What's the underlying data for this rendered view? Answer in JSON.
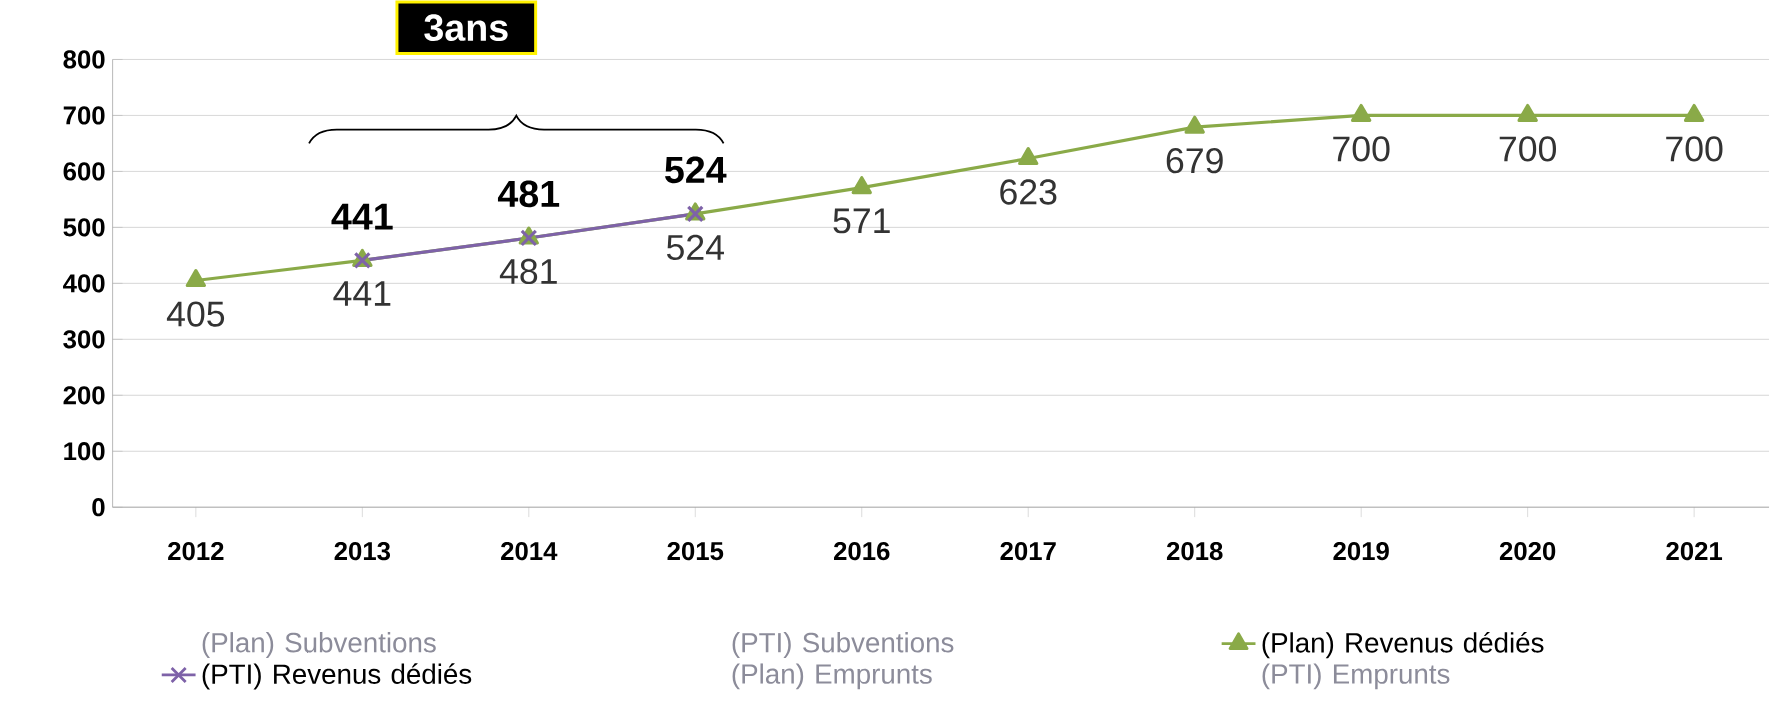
{
  "chart_data": {
    "type": "line",
    "categories": [
      "2012",
      "2013",
      "2014",
      "2015",
      "2016",
      "2017",
      "2018",
      "2019",
      "2020",
      "2021"
    ],
    "series": [
      {
        "name": "(Plan) Revenus dédiés",
        "color": "#8aaa48",
        "marker": "triangle",
        "values": [
          405,
          441,
          481,
          524,
          571,
          623,
          679,
          700,
          700,
          700
        ]
      },
      {
        "name": "(PTI) Revenus dédiés",
        "color": "#7e62a8",
        "marker": "cross",
        "values": [
          null,
          441,
          481,
          524,
          null,
          null,
          null,
          null,
          null,
          null
        ]
      }
    ],
    "ylim": [
      0,
      800
    ],
    "yticks": [
      0,
      100,
      200,
      300,
      400,
      500,
      600,
      700,
      800
    ],
    "grid": "y",
    "legend": "bottom",
    "data_labels": true,
    "annotations": [
      "3ans",
      "(Plan) Subventions",
      "(PTI) Subventions",
      "(Plan) Emprunts",
      "(PTI) Emprunts"
    ]
  }
}
